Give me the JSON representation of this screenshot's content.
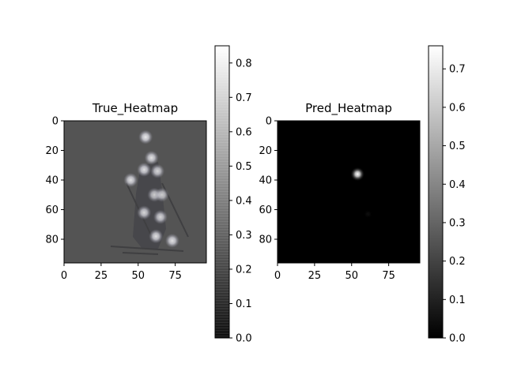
{
  "chart_data": [
    {
      "type": "heatmap",
      "title": "True_Heatmap",
      "xticks": [
        0,
        25,
        50,
        75
      ],
      "yticks": [
        0,
        20,
        40,
        60,
        80
      ],
      "xlim": [
        0,
        96
      ],
      "ylim": [
        96,
        0
      ],
      "colormap": "gray",
      "background_image": "skier photo (grayscale, blue tinted)",
      "background_value": 0.25,
      "peaks": [
        {
          "x": 55,
          "y": 11,
          "value": 0.85
        },
        {
          "x": 59,
          "y": 25,
          "value": 0.8
        },
        {
          "x": 54,
          "y": 33,
          "value": 0.8
        },
        {
          "x": 63,
          "y": 34,
          "value": 0.75
        },
        {
          "x": 45,
          "y": 40,
          "value": 0.8
        },
        {
          "x": 61,
          "y": 50,
          "value": 0.7
        },
        {
          "x": 66,
          "y": 50,
          "value": 0.7
        },
        {
          "x": 54,
          "y": 62,
          "value": 0.75
        },
        {
          "x": 65,
          "y": 65,
          "value": 0.75
        },
        {
          "x": 62,
          "y": 78,
          "value": 0.8
        },
        {
          "x": 73,
          "y": 81,
          "value": 0.8
        }
      ],
      "colorbar": {
        "ticks": [
          0.0,
          0.1,
          0.2,
          0.3,
          0.4,
          0.5,
          0.6,
          0.7,
          0.8
        ],
        "min": 0.0,
        "max": 0.85
      }
    },
    {
      "type": "heatmap",
      "title": "Pred_Heatmap",
      "xticks": [
        0,
        25,
        50,
        75
      ],
      "yticks": [
        0,
        20,
        40,
        60,
        80
      ],
      "xlim": [
        0,
        96
      ],
      "ylim": [
        96,
        0
      ],
      "colormap": "gray",
      "peaks": [
        {
          "x": 54,
          "y": 36,
          "value": 0.76
        },
        {
          "x": 61,
          "y": 63,
          "value": 0.04
        }
      ],
      "colorbar": {
        "ticks": [
          0.0,
          0.1,
          0.2,
          0.3,
          0.4,
          0.5,
          0.6,
          0.7
        ],
        "min": 0.0,
        "max": 0.76
      }
    }
  ]
}
